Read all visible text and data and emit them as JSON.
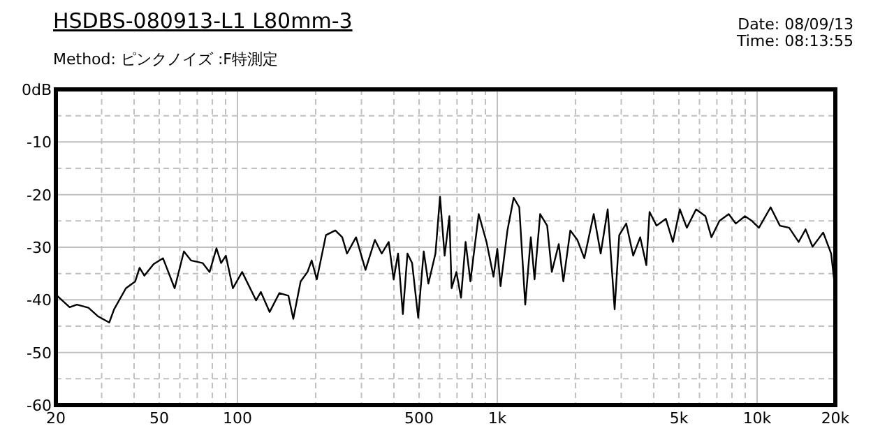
{
  "chart_data": {
    "type": "line",
    "title": "HSDBS-080913-L1 L80mm-3",
    "subtitle": "Method: ピンクノイズ :F特測定",
    "annotations": [
      "Date: 08/09/13",
      "Time: 08:13:55"
    ],
    "x": [
      20,
      22.6,
      24.1,
      26.7,
      29.0,
      32.1,
      33.5,
      37.2,
      40.4,
      42.0,
      43.8,
      47.6,
      51.7,
      57.3,
      62.2,
      66.2,
      73.4,
      78.1,
      83.0,
      86.5,
      90.2,
      96.0,
      104.2,
      117.9,
      123,
      133,
      145,
      157,
      164,
      175,
      186,
      193,
      202,
      219,
      238,
      253,
      264,
      286,
      311,
      338,
      359,
      382,
      399,
      415,
      433,
      451,
      470,
      496,
      521,
      543,
      578,
      602,
      627,
      654,
      667,
      696,
      725,
      755,
      788,
      848,
      909,
      967,
      1000,
      1029,
      1094,
      1156,
      1215,
      1281,
      1346,
      1391,
      1462,
      1556,
      1621,
      1724,
      1796,
      1910,
      2033,
      2163,
      2350,
      2500,
      2660,
      2829,
      2947,
      3135,
      3335,
      3548,
      3747,
      3855,
      4101,
      4455,
      4740,
      5043,
      5364,
      5821,
      6325,
      6670,
      7160,
      7777,
      8274,
      8978,
      9552,
      10160,
      11270,
      12237,
      13290,
      14444,
      15364,
      16346,
      17960,
      19270,
      19820,
      19990
    ],
    "series": [
      {
        "color": "#000000",
        "values": [
          -39.0,
          -41.4,
          -40.9,
          -41.5,
          -43.1,
          -44.3,
          -41.8,
          -37.8,
          -36.5,
          -33.9,
          -35.4,
          -33.2,
          -32.1,
          -37.8,
          -30.8,
          -32.5,
          -33.0,
          -34.7,
          -30.2,
          -33.0,
          -31.6,
          -37.8,
          -34.7,
          -40.1,
          -38.5,
          -42.3,
          -38.7,
          -39.2,
          -43.6,
          -36.5,
          -34.7,
          -32.5,
          -36.1,
          -27.7,
          -26.8,
          -28.1,
          -31.2,
          -28.1,
          -34.3,
          -28.6,
          -31.2,
          -29.0,
          -36.1,
          -31.2,
          -42.7,
          -31.2,
          -33.0,
          -43.4,
          -30.8,
          -36.9,
          -31.2,
          -20.4,
          -31.6,
          -24.1,
          -37.8,
          -34.7,
          -39.6,
          -29.0,
          -36.5,
          -23.7,
          -29.0,
          -35.6,
          -30.3,
          -37.4,
          -26.8,
          -20.6,
          -22.4,
          -40.9,
          -28.1,
          -36.1,
          -23.7,
          -25.9,
          -34.7,
          -29.4,
          -36.5,
          -26.8,
          -28.6,
          -32.1,
          -23.7,
          -31.2,
          -22.8,
          -41.8,
          -27.7,
          -25.5,
          -31.6,
          -28.1,
          -33.4,
          -23.3,
          -25.9,
          -24.6,
          -29.0,
          -22.8,
          -26.3,
          -22.8,
          -24.1,
          -28.1,
          -25.0,
          -23.7,
          -25.5,
          -24.1,
          -25.0,
          -26.3,
          -22.4,
          -25.9,
          -26.3,
          -29.0,
          -26.6,
          -29.9,
          -27.2,
          -31.2,
          -36.5,
          -45.8
        ]
      }
    ],
    "xlim": [
      20,
      20000
    ],
    "xticks": [
      20,
      50,
      100,
      500,
      {
        "value": 1000,
        "label": "1k"
      },
      {
        "value": 5000,
        "label": "5k"
      },
      {
        "value": 10000,
        "label": "10k"
      },
      {
        "value": 20000,
        "label": "20k"
      }
    ],
    "ylim": [
      -60,
      0
    ],
    "yticks": [
      {
        "value": 0,
        "label": "0dB"
      },
      -10,
      -20,
      -30,
      -40,
      -50,
      -60
    ],
    "log": "x",
    "grid": true,
    "line_style": "solid"
  }
}
